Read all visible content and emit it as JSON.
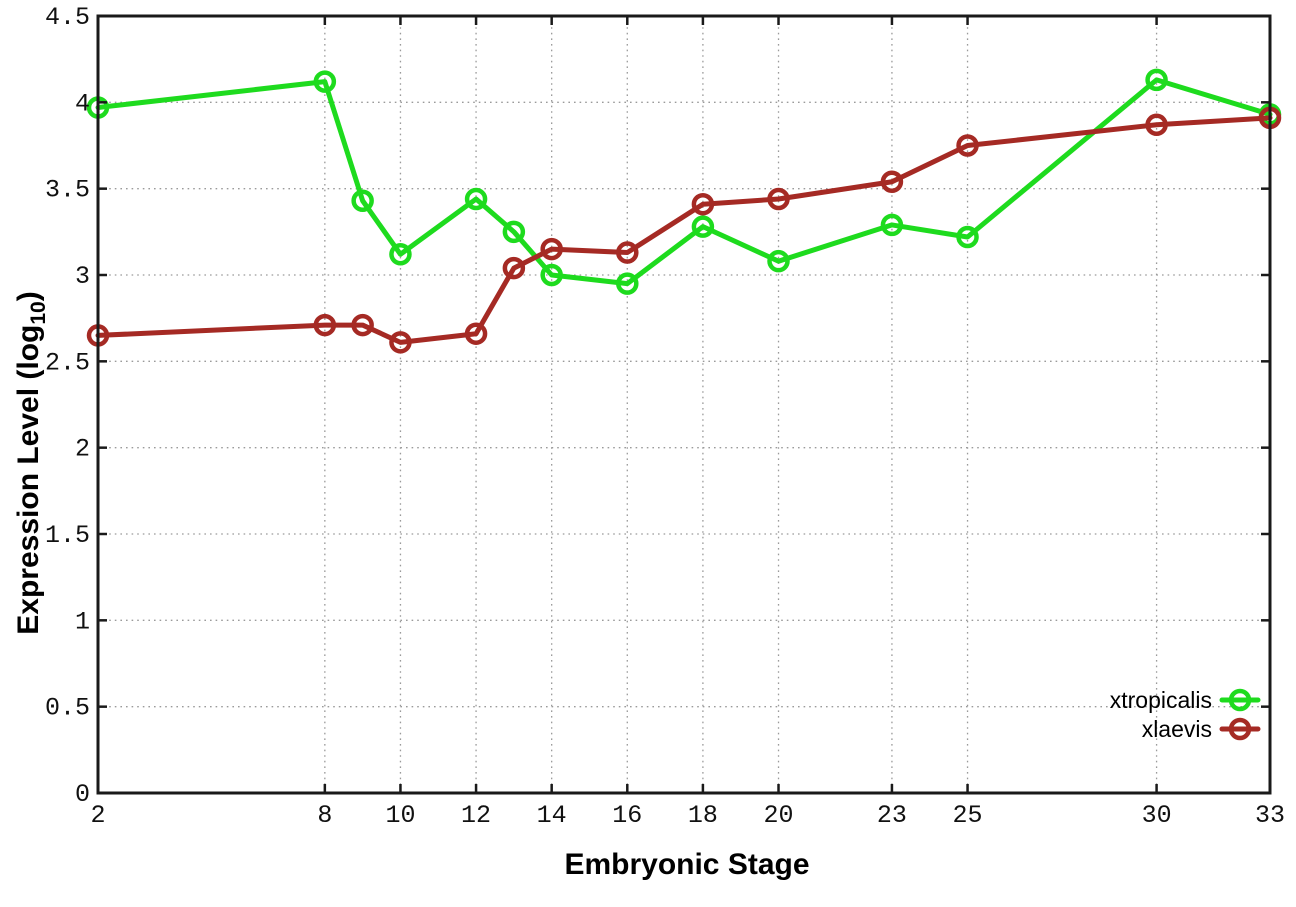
{
  "chart_data": {
    "type": "line",
    "title": "",
    "xlabel": "Embryonic Stage",
    "ylabel": "Expression Level (log10)",
    "ylabel_rich": {
      "pre": "Expression Level (log",
      "sub": "10",
      "post": ")"
    },
    "xlim": [
      2,
      33
    ],
    "ylim": [
      0,
      4.5
    ],
    "x_ticks": [
      2,
      8,
      10,
      12,
      14,
      16,
      18,
      20,
      23,
      25,
      30,
      33
    ],
    "x_tick_labels": [
      "2",
      "8",
      "10",
      "12",
      "14",
      "16",
      "18",
      "20",
      "23",
      "25",
      "30",
      "33"
    ],
    "y_ticks": [
      0,
      0.5,
      1,
      1.5,
      2,
      2.5,
      3,
      3.5,
      4,
      4.5
    ],
    "y_tick_labels": [
      "0",
      "0.5",
      "1",
      "1.5",
      "2",
      "2.5",
      "3",
      "3.5",
      "4",
      "4.5"
    ],
    "grid": true,
    "grid_style": "dotted",
    "marker": "open-circle",
    "legend_position": "bottom-right",
    "colors": {
      "xtropicalis": "#1edb1e",
      "xlaevis": "#a52a24",
      "axis": "#1a1a1a",
      "grid": "#9a9a9a",
      "background": "#ffffff",
      "text": "#000000"
    },
    "x": [
      2,
      8,
      9,
      10,
      12,
      13,
      14,
      16,
      18,
      20,
      23,
      25,
      30,
      33
    ],
    "series": [
      {
        "name": "xtropicalis",
        "color": "#1edb1e",
        "values": [
          3.97,
          4.12,
          3.43,
          3.12,
          3.44,
          3.25,
          3.0,
          2.95,
          3.28,
          3.08,
          3.29,
          3.22,
          4.13,
          3.93
        ]
      },
      {
        "name": "xlaevis",
        "color": "#a52a24",
        "values": [
          2.65,
          2.71,
          2.71,
          2.61,
          2.66,
          3.04,
          3.15,
          3.13,
          3.41,
          3.44,
          3.54,
          3.75,
          3.87,
          3.91
        ]
      }
    ]
  }
}
